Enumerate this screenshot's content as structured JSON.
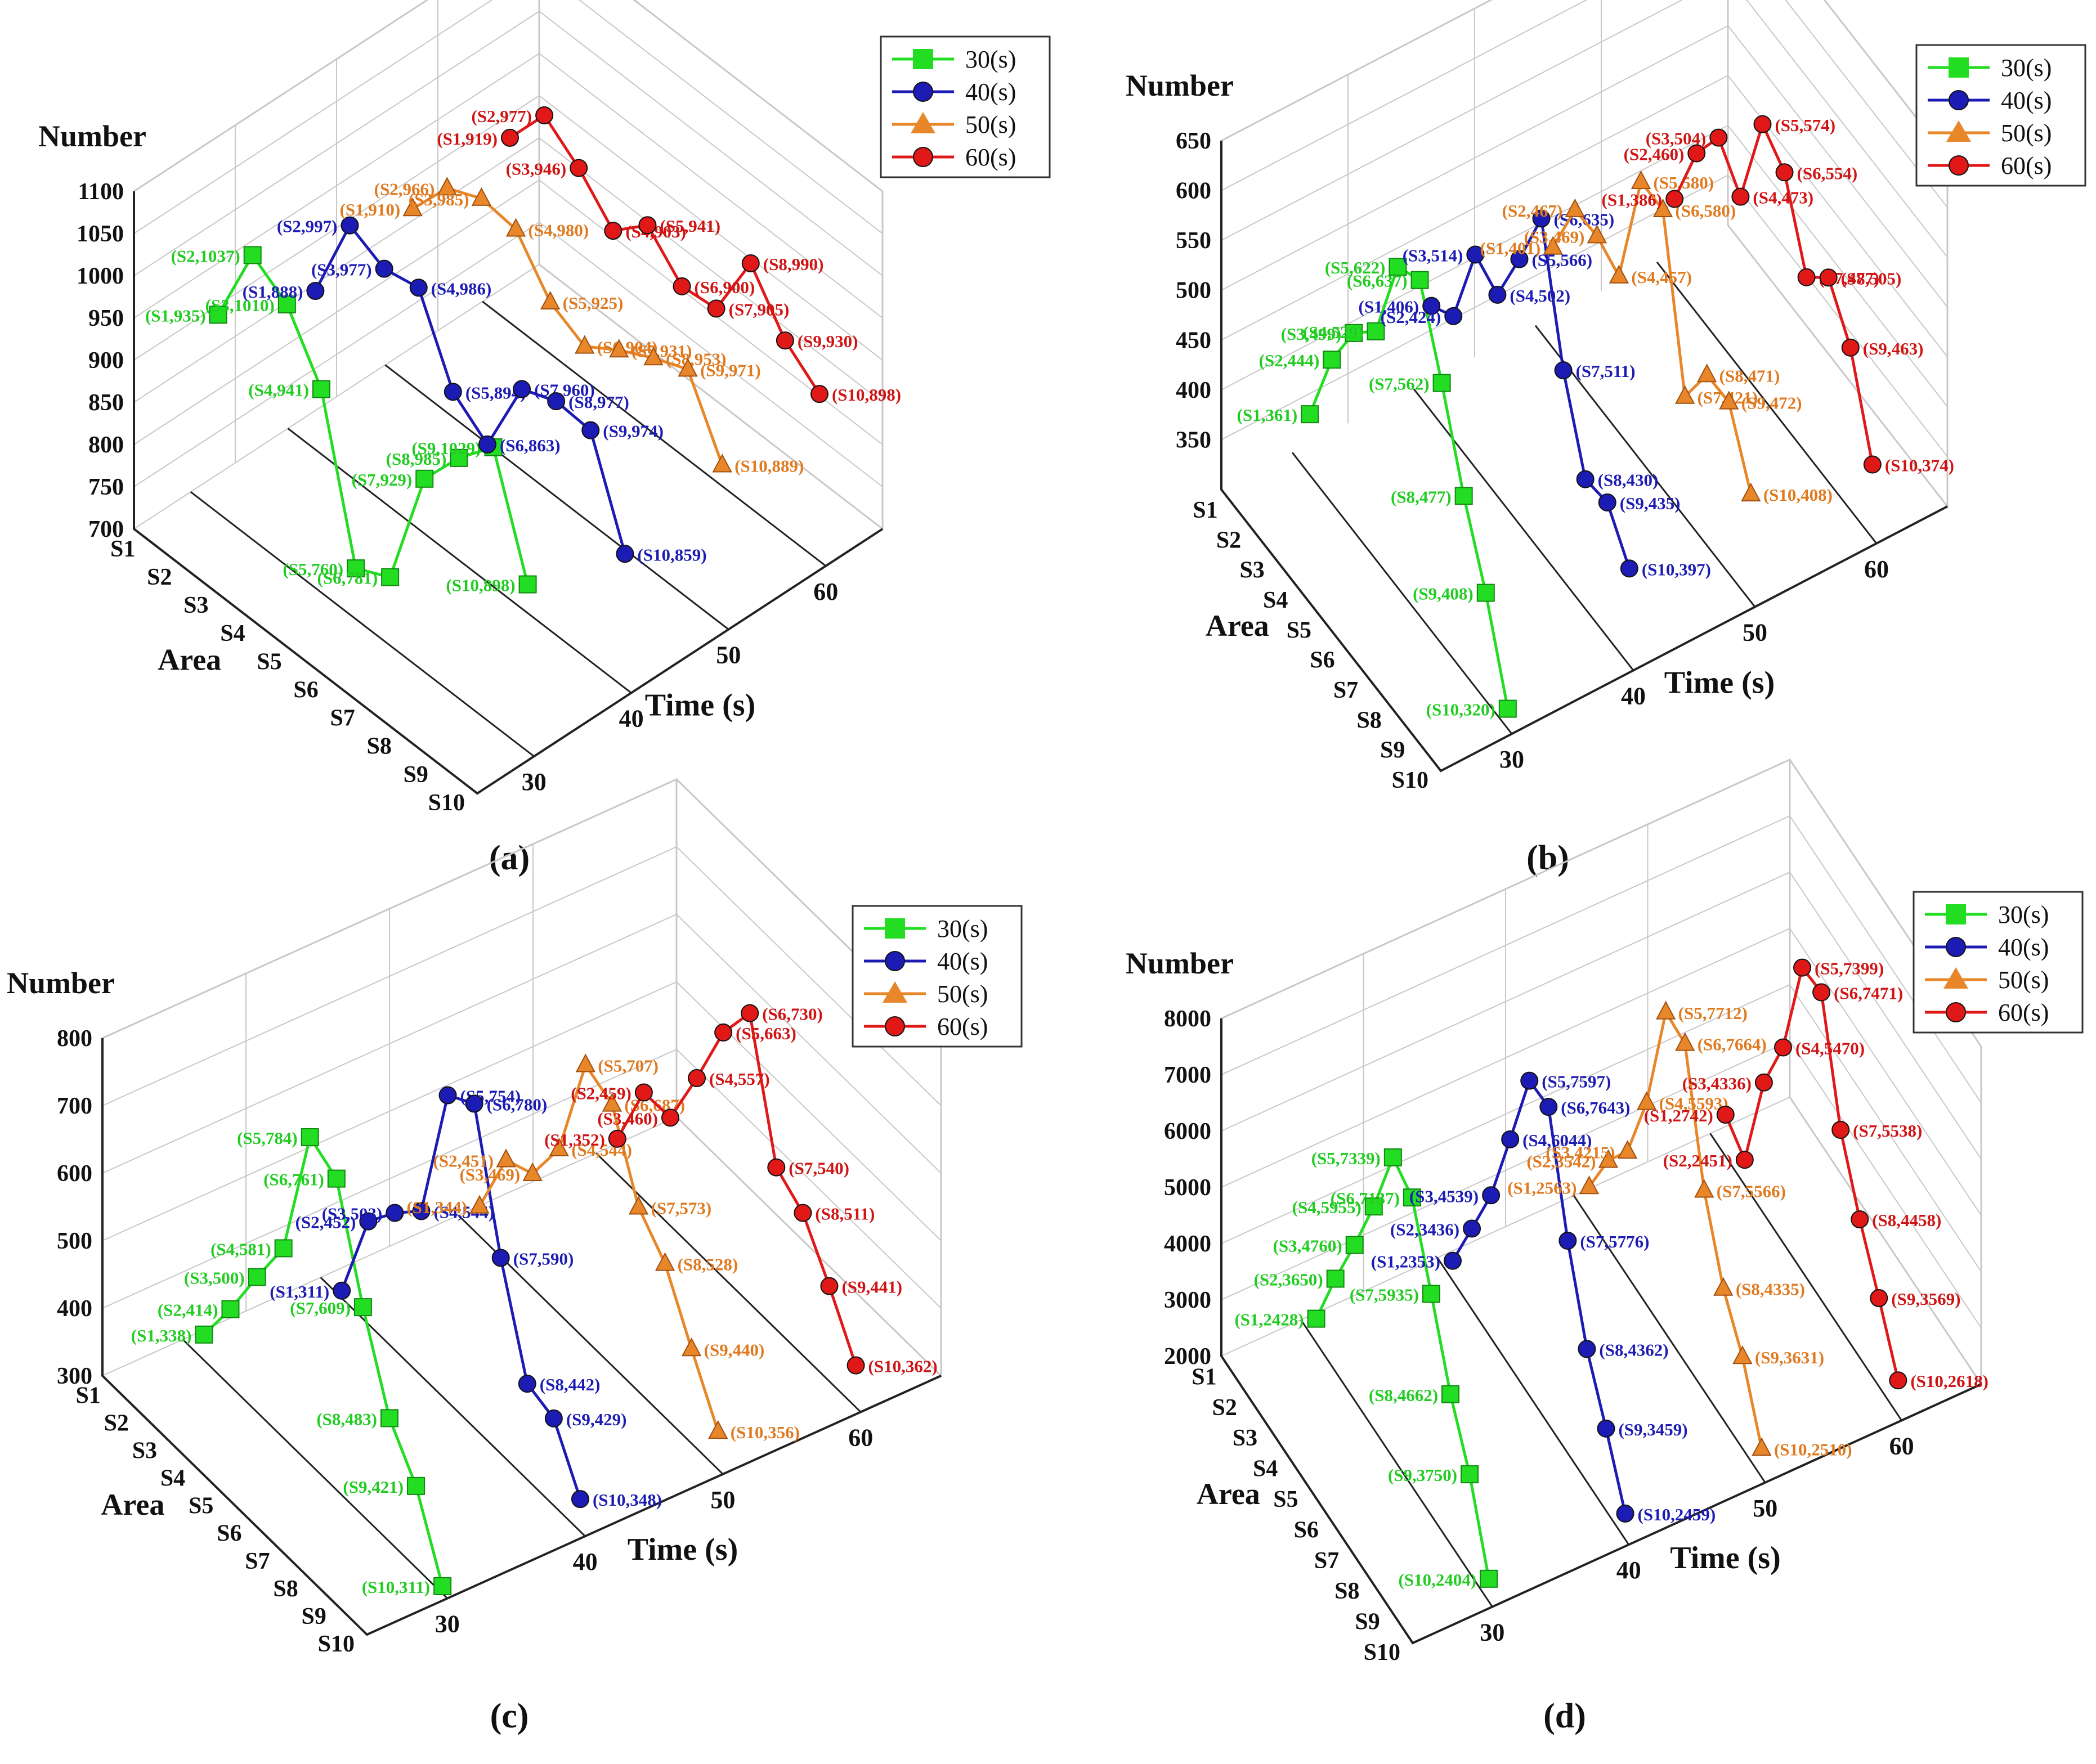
{
  "chart_data": [
    {
      "panel": "(a)",
      "type": "line",
      "projection": "3d",
      "ylabel": "Number",
      "xlabel": "Area",
      "zlabel": "Time (s)",
      "yticks": [
        "700",
        "750",
        "800",
        "850",
        "900",
        "950",
        "1000",
        "1050",
        "1100"
      ],
      "ylim": [
        700,
        1100
      ],
      "categories": [
        "S1",
        "S2",
        "S3",
        "S4",
        "S5",
        "S6",
        "S7",
        "S8",
        "S9",
        "S10"
      ],
      "time_ticks": [
        "30",
        "40",
        "50",
        "60"
      ],
      "series": [
        {
          "name": "30(s)",
          "time": 30,
          "values": [
            935,
            1037,
            1010,
            941,
            760,
            781,
            929,
            985,
            1029,
            898
          ],
          "labels": [
            "(S1,935)",
            "(S2,1037)",
            "(S3,1010)",
            "(S4,941)",
            "(S5,760)",
            "(S6,781)",
            "(S7,929)",
            "(S8,985)",
            "(S9,1029)",
            "(S10,898)"
          ]
        },
        {
          "name": "40(s)",
          "time": 40,
          "values": [
            888,
            997,
            977,
            986,
            894,
            863,
            960,
            977,
            974,
            859
          ],
          "labels": [
            "(S1,888)",
            "(S2,997)",
            "(S3,977)",
            "(S4,986)",
            "(S5,894)",
            "(S6,863)",
            "(S7,960)",
            "(S8,977)",
            "(S9,974)",
            "(S10,859)"
          ]
        },
        {
          "name": "50(s)",
          "time": 50,
          "values": [
            910,
            966,
            985,
            980,
            925,
            904,
            931,
            953,
            971,
            889
          ],
          "labels": [
            "(S1,910)",
            "(S2,966)",
            "(S3,985)",
            "(S4,980)",
            "(S5,925)",
            "(S6,904)",
            "(S7,931)",
            "(S8,953)",
            "(S9,971)",
            "(S10,889)"
          ]
        },
        {
          "name": "60(s)",
          "time": 60,
          "values": [
            919,
            977,
            946,
            903,
            941,
            900,
            905,
            990,
            930,
            898
          ],
          "labels": [
            "(S1,919)",
            "(S2,977)",
            "(S3,946)",
            "(S4,903)",
            "(S5,941)",
            "(S6,900)",
            "(S7,905)",
            "(S8,990)",
            "(S9,930)",
            "(S10,898)"
          ]
        }
      ]
    },
    {
      "panel": "(b)",
      "type": "line",
      "projection": "3d",
      "ylabel": "Number",
      "xlabel": "Area",
      "zlabel": "Time (s)",
      "yticks": [
        "350",
        "400",
        "450",
        "500",
        "550",
        "600",
        "650"
      ],
      "ylim": [
        300,
        650
      ],
      "categories": [
        "S1",
        "S2",
        "S3",
        "S4",
        "S5",
        "S6",
        "S7",
        "S8",
        "S9",
        "S10"
      ],
      "time_ticks": [
        "30",
        "40",
        "50",
        "60"
      ],
      "series": [
        {
          "name": "30(s)",
          "time": 30,
          "values": [
            361,
            444,
            499,
            529,
            622,
            637,
            562,
            477,
            408,
            320
          ],
          "labels": [
            "(S1,361)",
            "(S2,444)",
            "(S3,499)",
            "(S4,529)",
            "(S5,622)",
            "(S6,637)",
            "(S7,562)",
            "(S8,477)",
            "(S9,408)",
            "(S10,320)"
          ]
        },
        {
          "name": "40(s)",
          "time": 40,
          "values": [
            406,
            424,
            514,
            502,
            566,
            635,
            511,
            430,
            435,
            397
          ],
          "labels": [
            "(S1,406)",
            "(S2,424)",
            "(S3,514)",
            "(S4,502)",
            "(S5,566)",
            "(S6,635)",
            "(S7,511)",
            "(S8,430)",
            "(S9,435)",
            "(S10,397)"
          ]
        },
        {
          "name": "50(s)",
          "time": 50,
          "values": [
            401,
            467,
            469,
            457,
            580,
            580,
            421,
            471,
            472,
            408
          ],
          "labels": [
            "(S1,401)",
            "(S2,467)",
            "(S3,469)",
            "(S4,457)",
            "(S5,580)",
            "(S6,580)",
            "(S7,421)",
            "(S8,471)",
            "(S9,472)",
            "(S10,408)"
          ]
        },
        {
          "name": "60(s)",
          "time": 60,
          "values": [
            386,
            460,
            504,
            473,
            574,
            554,
            477,
            505,
            463,
            374
          ],
          "labels": [
            "(S1,386)",
            "(S2,460)",
            "(S3,504)",
            "(S4,473)",
            "(S5,574)",
            "(S6,554)",
            "(S7,477)",
            "(S8,505)",
            "(S9,463)",
            "(S10,374)"
          ]
        }
      ]
    },
    {
      "panel": "(c)",
      "type": "line",
      "projection": "3d",
      "ylabel": "Number",
      "xlabel": "Area",
      "zlabel": "Time (s)",
      "yticks": [
        "300",
        "400",
        "500",
        "600",
        "700",
        "800"
      ],
      "ylim": [
        300,
        800
      ],
      "categories": [
        "S1",
        "S2",
        "S3",
        "S4",
        "S5",
        "S6",
        "S7",
        "S8",
        "S9",
        "S10"
      ],
      "time_ticks": [
        "30",
        "40",
        "50",
        "60"
      ],
      "series": [
        {
          "name": "30(s)",
          "time": 30,
          "values": [
            338,
            414,
            500,
            581,
            784,
            761,
            609,
            483,
            421,
            311
          ],
          "labels": [
            "(S1,338)",
            "(S2,414)",
            "(S3,500)",
            "(S4,581)",
            "(S5,784)",
            "(S6,761)",
            "(S7,609)",
            "(S8,483)",
            "(S9,421)",
            "(S10,311)"
          ]
        },
        {
          "name": "40(s)",
          "time": 40,
          "values": [
            311,
            452,
            503,
            544,
            754,
            780,
            590,
            442,
            429,
            348
          ],
          "labels": [
            "(S1,311)",
            "(S2,452)",
            "(S3,503)",
            "(S4,544)",
            "(S5,754)",
            "(S6,780)",
            "(S7,590)",
            "(S8,442)",
            "(S9,429)",
            "(S10,348)"
          ]
        },
        {
          "name": "50(s)",
          "time": 50,
          "values": [
            344,
            451,
            469,
            544,
            707,
            687,
            573,
            528,
            440,
            356
          ],
          "labels": [
            "(S1,344)",
            "(S2,451)",
            "(S3,469)",
            "(S4,544)",
            "(S5,707)",
            "(S6,687)",
            "(S7,573)",
            "(S8,528)",
            "(S9,440)",
            "(S10,356)"
          ]
        },
        {
          "name": "60(s)",
          "time": 60,
          "values": [
            352,
            459,
            460,
            557,
            663,
            730,
            540,
            511,
            441,
            362
          ],
          "labels": [
            "(S1,352)",
            "(S2,459)",
            "(S3,460)",
            "(S4,557)",
            "(S5,663)",
            "(S6,730)",
            "(S7,540)",
            "(S8,511)",
            "(S9,441)",
            "(S10,362)"
          ]
        }
      ]
    },
    {
      "panel": "(d)",
      "type": "line",
      "projection": "3d",
      "ylabel": "Number",
      "xlabel": "Area",
      "zlabel": "Time (s)",
      "yticks": [
        "2000",
        "3000",
        "4000",
        "5000",
        "6000",
        "7000",
        "8000"
      ],
      "ylim": [
        2000,
        8000
      ],
      "categories": [
        "S1",
        "S2",
        "S3",
        "S4",
        "S5",
        "S6",
        "S7",
        "S8",
        "S9",
        "S10"
      ],
      "time_ticks": [
        "30",
        "40",
        "50",
        "60"
      ],
      "series": [
        {
          "name": "30(s)",
          "time": 30,
          "values": [
            2428,
            3650,
            4760,
            5955,
            7339,
            7137,
            5935,
            4662,
            3750,
            2404
          ],
          "labels": [
            "(S1,2428)",
            "(S2,3650)",
            "(S3,4760)",
            "(S4,5955)",
            "(S5,7339)",
            "(S6,7137)",
            "(S7,5935)",
            "(S8,4662)",
            "(S9,3750)",
            "(S10,2404)"
          ]
        },
        {
          "name": "40(s)",
          "time": 40,
          "values": [
            2353,
            3436,
            4539,
            6044,
            7597,
            7643,
            5776,
            4362,
            3459,
            2459
          ],
          "labels": [
            "(S1,2353)",
            "(S2,3436)",
            "(S3,4539)",
            "(S4,6044)",
            "(S5,7597)",
            "(S6,7643)",
            "(S7,5776)",
            "(S8,4362)",
            "(S9,3459)",
            "(S10,2459)"
          ]
        },
        {
          "name": "50(s)",
          "time": 50,
          "values": [
            2563,
            3542,
            4215,
            5593,
            7712,
            7664,
            5566,
            4335,
            3631,
            2510
          ],
          "labels": [
            "(S1,2563)",
            "(S2,3542)",
            "(S3,4215)",
            "(S4,5593)",
            "(S5,7712)",
            "(S6,7664)",
            "(S7,5566)",
            "(S8,4335)",
            "(S9,3631)",
            "(S10,2510)"
          ]
        },
        {
          "name": "60(s)",
          "time": 60,
          "values": [
            2742,
            2451,
            4336,
            5470,
            7399,
            7471,
            5538,
            4458,
            3569,
            2618
          ],
          "labels": [
            "(S1,2742)",
            "(S2,2451)",
            "(S3,4336)",
            "(S4,5470)",
            "(S5,7399)",
            "(S6,7471)",
            "(S7,5538)",
            "(S8,4458)",
            "(S9,3569)",
            "(S10,2618)"
          ]
        }
      ]
    }
  ],
  "colors": {
    "30(s)": "#22dd22",
    "40(s)": "#1c1cb4",
    "50(s)": "#e8862a",
    "60(s)": "#e01818",
    "label_30": "#22cc22",
    "label_40": "#1c1cb4",
    "label_50": "#e07a20",
    "label_60": "#d01414",
    "grid": "#c8c8c8",
    "axis": "#222222"
  },
  "markers": {
    "30(s)": "square",
    "40(s)": "circle",
    "50(s)": "triangle",
    "60(s)": "circle"
  }
}
